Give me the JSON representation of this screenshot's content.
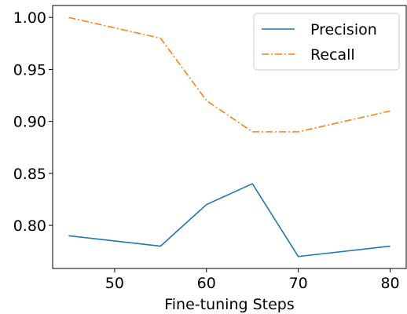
{
  "chart_data": {
    "type": "line",
    "title": "",
    "xlabel": "Fine-tuning Steps",
    "ylabel": "",
    "x": [
      45,
      55,
      60,
      65,
      70,
      80
    ],
    "xlim": [
      43.25,
      81.75
    ],
    "ylim": [
      0.7585,
      1.0115
    ],
    "xticks": [
      50,
      60,
      70,
      80
    ],
    "xtick_labels": [
      "50",
      "60",
      "70",
      "80"
    ],
    "yticks": [
      0.8,
      0.85,
      0.9,
      0.95,
      1.0
    ],
    "ytick_labels": [
      "0.80",
      "0.85",
      "0.90",
      "0.95",
      "1.00"
    ],
    "grid": false,
    "legend_position": "top-right",
    "series": [
      {
        "name": "Precision",
        "values": [
          0.79,
          0.78,
          0.82,
          0.84,
          0.77,
          0.78
        ],
        "color": "#1f77b4",
        "linestyle": "solid"
      },
      {
        "name": "Recall",
        "values": [
          1.0,
          0.98,
          0.92,
          0.89,
          0.89,
          0.91
        ],
        "color": "#ff7f0e",
        "linestyle": "dashdot"
      }
    ]
  }
}
